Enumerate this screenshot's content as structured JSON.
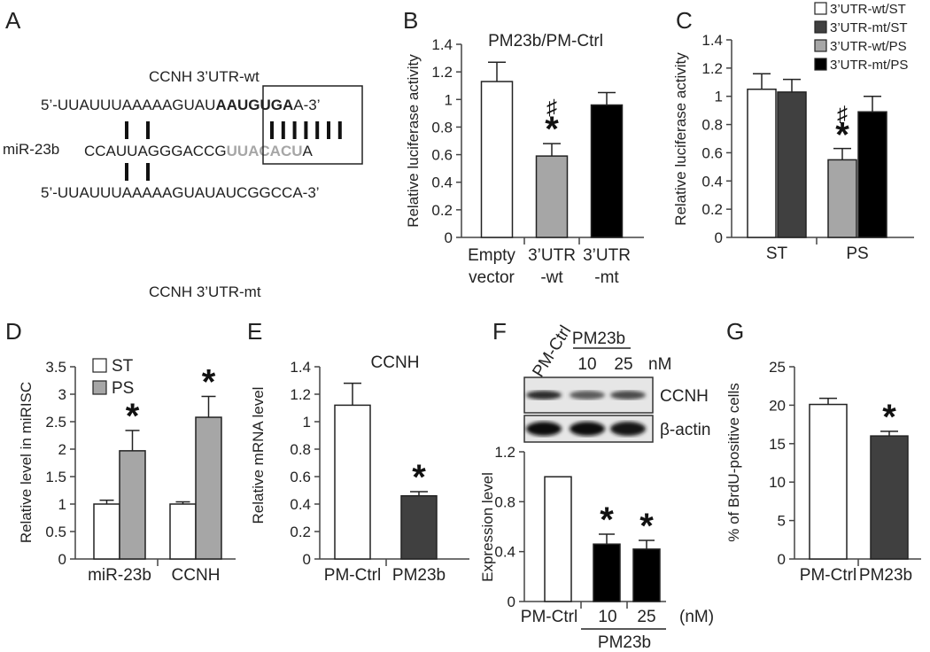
{
  "figure": {
    "panel_letters": [
      "A",
      "B",
      "C",
      "D",
      "E",
      "F",
      "G"
    ],
    "significance_mark": "*",
    "hash_mark": "♯"
  },
  "panel_a": {
    "label_wt": "CCNH 3’UTR-wt",
    "label_mt": "CCNH 3’UTR-mt",
    "mirna_label": "miR-23b",
    "wt_seq": {
      "pre": "5’-UUAUUUAAAAAGUAU",
      "seed": "AAUGUGA",
      "post": "A-3’"
    },
    "mirna_seq": {
      "pre": "CCAUUAGGGACCG",
      "seed": "UUACACU",
      "post": "A"
    },
    "mt_seq": "5’-UUAUUUAAAAAGUAUAUCGGCCA-3’"
  },
  "chart_data": [
    {
      "panel": "B",
      "type": "bar",
      "title": "PM23b/PM-Ctrl",
      "ylabel": "Relative luciferase activity",
      "ylim": [
        0,
        1.4
      ],
      "yticks": [
        "0",
        "0.2",
        "0.4",
        "0.6",
        "0.8",
        "1",
        "1.2",
        "1.4"
      ],
      "categories": [
        [
          "Empty",
          "vector"
        ],
        [
          "3’UTR",
          "-wt"
        ],
        [
          "3’UTR",
          "-mt"
        ]
      ],
      "values": [
        1.13,
        0.59,
        0.96
      ],
      "errors": [
        0.14,
        0.09,
        0.09
      ],
      "colors": [
        "#ffffff",
        "#a6a6a6",
        "#000000"
      ],
      "significant": [
        false,
        true,
        false
      ],
      "hash": [
        false,
        true,
        false
      ]
    },
    {
      "panel": "C",
      "type": "bar",
      "ylabel": "Relative luciferase activity",
      "ylim": [
        0,
        1.4
      ],
      "yticks": [
        "0",
        "0.2",
        "0.4",
        "0.6",
        "0.8",
        "1",
        "1.2",
        "1.4"
      ],
      "categories": [
        "ST",
        "PS"
      ],
      "series": [
        {
          "name": "3’UTR-wt/ST",
          "values": [
            1.05,
            null
          ],
          "errors": [
            0.11,
            null
          ],
          "color": "#ffffff"
        },
        {
          "name": "3’UTR-mt/ST",
          "values": [
            1.03,
            null
          ],
          "errors": [
            0.09,
            null
          ],
          "color": "#404040"
        },
        {
          "name": "3’UTR-wt/PS",
          "values": [
            null,
            0.55
          ],
          "errors": [
            null,
            0.08
          ],
          "color": "#a6a6a6"
        },
        {
          "name": "3’UTR-mt/PS",
          "values": [
            null,
            0.89
          ],
          "errors": [
            null,
            0.11
          ],
          "color": "#000000"
        }
      ],
      "significant_series": "3’UTR-wt/PS",
      "legend": "top-right"
    },
    {
      "panel": "D",
      "type": "bar",
      "ylabel": "Relative level in miRISC",
      "ylim": [
        0,
        3.5
      ],
      "yticks": [
        "0",
        "0.5",
        "1",
        "1.5",
        "2",
        "2.5",
        "3",
        "3.5"
      ],
      "categories": [
        "miR-23b",
        "CCNH"
      ],
      "series": [
        {
          "name": "ST",
          "values": [
            1.0,
            1.0
          ],
          "errors": [
            0.07,
            0.04
          ],
          "color": "#ffffff",
          "significant": [
            false,
            false
          ]
        },
        {
          "name": "PS",
          "values": [
            1.97,
            2.58
          ],
          "errors": [
            0.37,
            0.38
          ],
          "color": "#a6a6a6",
          "significant": [
            true,
            true
          ]
        }
      ],
      "legend": "top-left"
    },
    {
      "panel": "E",
      "type": "bar",
      "title": "CCNH",
      "ylabel": "Relative mRNA level",
      "ylim": [
        0,
        1.4
      ],
      "yticks": [
        "0",
        "0.2",
        "0.4",
        "0.6",
        "0.8",
        "1",
        "1.2",
        "1.4"
      ],
      "categories": [
        "PM-Ctrl",
        "PM23b"
      ],
      "values": [
        1.12,
        0.46
      ],
      "errors": [
        0.16,
        0.03
      ],
      "colors": [
        "#ffffff",
        "#404040"
      ],
      "significant": [
        false,
        true
      ]
    },
    {
      "panel": "F",
      "type": "bar",
      "ylabel": "Expression level",
      "ylim": [
        0,
        1.2
      ],
      "yticks": [
        "0",
        "0.4",
        "0.8",
        "1.2"
      ],
      "categories": [
        "PM-Ctrl",
        "10",
        "25"
      ],
      "unit": "(nM)",
      "group_label": "PM23b",
      "values": [
        1.0,
        0.46,
        0.42
      ],
      "errors": [
        0,
        0.08,
        0.07
      ],
      "colors": [
        "#ffffff",
        "#000000",
        "#000000"
      ],
      "significant": [
        false,
        true,
        true
      ],
      "blot": {
        "lanes": [
          "PM-Ctrl",
          "10",
          "25"
        ],
        "group_label": "PM23b",
        "unit": "nM",
        "bands": [
          "CCNH",
          "β-actin"
        ]
      }
    },
    {
      "panel": "G",
      "type": "bar",
      "ylabel": "% of BrdU-positive cells",
      "ylim": [
        0,
        25
      ],
      "yticks": [
        "0",
        "5",
        "10",
        "15",
        "20",
        "25"
      ],
      "categories": [
        "PM-Ctrl",
        "PM23b"
      ],
      "values": [
        20.1,
        16.0
      ],
      "errors": [
        0.8,
        0.6
      ],
      "colors": [
        "#ffffff",
        "#404040"
      ],
      "significant": [
        false,
        true
      ]
    }
  ]
}
